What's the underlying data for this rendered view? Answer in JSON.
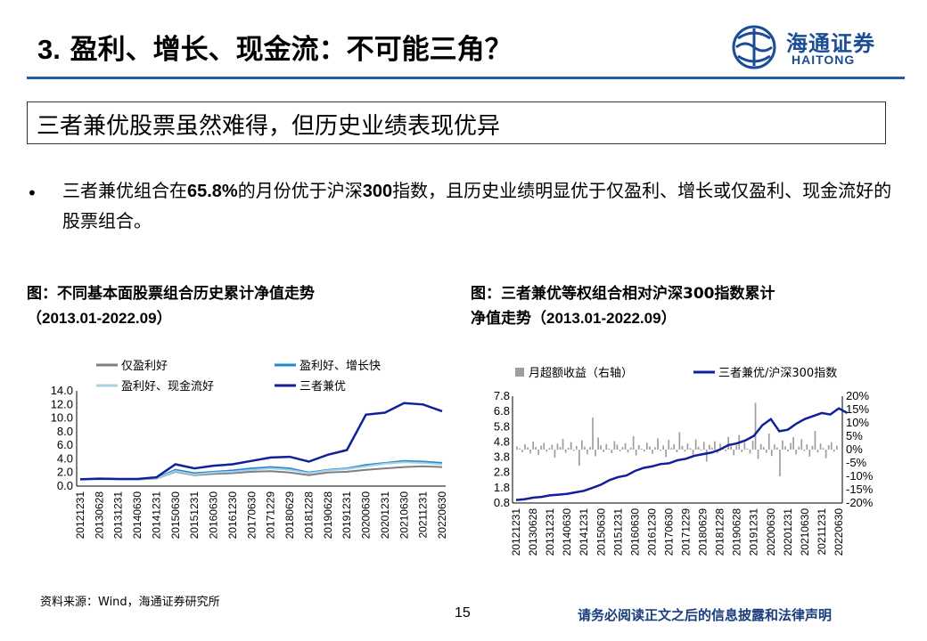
{
  "header": {
    "title_num": "3.",
    "title_text": " 盈利、增长、现金流：不可能三角？",
    "logo_cn": "海通证券",
    "logo_en": "HAITONG",
    "colors": {
      "accent": "#1f5fa8",
      "brand": "#1a4d96"
    }
  },
  "subtitle": "三者兼优股票虽然难得，但历史业绩表现优异",
  "bullet": {
    "marker": "•",
    "parts": [
      "三者兼优组合在",
      "65.8%",
      "的月份优于沪深",
      "300",
      "指数，且历史业绩明显优于仅盈利、增长或仅盈利、现金流好的股票组合。"
    ]
  },
  "chart1_caption": {
    "line1": "图：不同基本面股票组合历史累计净值走势",
    "line2_pre": "（",
    "line2_en": "2013.01-2022.09",
    "line2_post": "）"
  },
  "chart2_caption": {
    "line1": "图：三者兼优等权组合相对沪深300指数累计",
    "line2_pre": "净值走势（",
    "line2_en": "2013.01-2022.09",
    "line2_post": "）"
  },
  "footer": {
    "source": "资料来源：Wind，海通证券研究所",
    "page": "15",
    "disclaimer": "请务必阅读正文之后的信息披露和法律声明"
  },
  "chart_data": [
    {
      "type": "line",
      "title": "",
      "ylim": [
        0,
        14
      ],
      "yticks": [
        "0.0",
        "2.0",
        "4.0",
        "6.0",
        "8.0",
        "10.0",
        "12.0",
        "14.0"
      ],
      "x_labels": [
        "20121231",
        "20130628",
        "20131231",
        "20140630",
        "20141231",
        "20150630",
        "20151231",
        "20160630",
        "20161230",
        "20170630",
        "20171229",
        "20180629",
        "20181228",
        "20190628",
        "20191231",
        "20200630",
        "20201231",
        "20210630",
        "20211231",
        "20220630"
      ],
      "legend_position": "top",
      "series": [
        {
          "name": "仅盈利好",
          "color": "#7f7f7f",
          "values": [
            1.0,
            1.05,
            1.02,
            1.0,
            1.1,
            2.1,
            1.6,
            1.8,
            1.9,
            2.1,
            2.2,
            2.0,
            1.6,
            2.0,
            2.1,
            2.4,
            2.6,
            2.8,
            2.9,
            2.8
          ]
        },
        {
          "name": "盈利好、增长快",
          "color": "#1f8ad0",
          "values": [
            1.0,
            1.06,
            1.03,
            1.0,
            1.15,
            2.4,
            1.9,
            2.1,
            2.3,
            2.6,
            2.8,
            2.6,
            2.0,
            2.4,
            2.6,
            3.1,
            3.4,
            3.7,
            3.6,
            3.4
          ]
        },
        {
          "name": "盈利好、现金流好",
          "color": "#a8cfe8",
          "values": [
            1.0,
            1.05,
            1.03,
            1.0,
            1.12,
            2.2,
            1.7,
            2.0,
            2.1,
            2.4,
            2.6,
            2.4,
            1.9,
            2.3,
            2.5,
            2.9,
            3.3,
            3.5,
            3.4,
            3.2
          ]
        },
        {
          "name": "三者兼优",
          "color": "#10209a",
          "values": [
            1.0,
            1.1,
            1.05,
            1.05,
            1.3,
            3.2,
            2.6,
            3.0,
            3.2,
            3.7,
            4.2,
            4.3,
            3.6,
            4.6,
            5.3,
            10.5,
            10.8,
            12.2,
            12.0,
            11.0
          ]
        }
      ]
    },
    {
      "type": "bar",
      "title": "",
      "ylim_left": [
        0.8,
        7.8
      ],
      "yticks_left": [
        "0.8",
        "1.8",
        "2.8",
        "3.8",
        "4.8",
        "5.8",
        "6.8",
        "7.8"
      ],
      "ylim_right": [
        -20,
        20
      ],
      "yticks_right": [
        "-20%",
        "-15%",
        "-10%",
        "-5%",
        "0%",
        "5%",
        "10%",
        "15%",
        "20%"
      ],
      "x_labels": [
        "20121231",
        "20130628",
        "20131231",
        "20140630",
        "20141231",
        "20150630",
        "20151231",
        "20160630",
        "20161230",
        "20170630",
        "20171229",
        "20180629",
        "20181228",
        "20190628",
        "20191231",
        "20200630",
        "20201231",
        "20210630",
        "20211231",
        "20220630"
      ],
      "legend_position": "top",
      "series": [
        {
          "name": "月超额收益（右轴）",
          "color": "#9e9e9e",
          "axis": "right",
          "values": [
            1.2,
            0.5,
            -1.0,
            2.0,
            0.8,
            -1.5,
            3.0,
            1.0,
            -2.0,
            1.5,
            2.5,
            -0.8,
            0.6,
            1.8,
            -3.0,
            2.2,
            1.0,
            4.0,
            -1.2,
            0.7,
            2.8,
            -0.5,
            1.3,
            -6.0,
            3.5,
            1.1,
            -1.8,
            0.9,
            12.0,
            -2.5,
            4.5,
            1.6,
            -0.9,
            2.1,
            0.4,
            -1.4,
            3.2,
            1.9,
            -0.6,
            1.0,
            2.4,
            -1.1,
            0.8,
            5.0,
            -2.2,
            1.7,
            0.3,
            -0.7,
            2.6,
            1.2,
            -1.6,
            0.9,
            4.2,
            -0.4,
            1.5,
            -2.8,
            3.6,
            0.6,
            2.0,
            -1.0,
            6.5,
            1.4,
            -0.8,
            2.3,
            0.5,
            -1.9,
            3.8,
            1.1,
            -0.3,
            2.9,
            -4.5,
            1.8,
            0.7,
            3.1,
            -1.3,
            2.2,
            0.9,
            -0.6,
            4.8,
            1.3,
            -2.1,
            1.6,
            5.5,
            -0.9,
            2.7,
            0.4,
            -1.5,
            3.3,
            17.5,
            -3.5,
            2.1,
            1.0,
            -1.2,
            6.0,
            -2.4,
            1.9,
            0.8,
            -10.0,
            3.4,
            1.2,
            -0.7,
            2.5,
            4.6,
            -1.8,
            1.1,
            3.9,
            -0.5,
            2.0,
            -2.6,
            1.4,
            7.0,
            -1.1,
            2.3,
            0.6,
            -3.2,
            1.7,
            2.8,
            -0.8,
            1.5
          ]
        },
        {
          "name": "三者兼优/沪深300指数",
          "color": "#10209a",
          "axis": "left",
          "x": [
            0,
            0.5,
            1,
            1.5,
            2,
            2.5,
            3,
            3.5,
            4,
            4.5,
            5,
            5.5,
            6,
            6.5,
            7,
            7.5,
            8,
            8.5,
            9,
            9.5,
            10,
            10.5,
            11,
            11.5,
            12,
            12.5,
            13,
            13.5,
            14,
            14.5,
            15,
            15.5,
            16,
            16.5,
            17,
            17.5,
            18,
            18.5,
            19,
            19.5
          ],
          "values": [
            1.0,
            1.05,
            1.15,
            1.2,
            1.3,
            1.35,
            1.4,
            1.5,
            1.6,
            1.8,
            2.0,
            2.3,
            2.5,
            2.6,
            2.9,
            3.1,
            3.2,
            3.35,
            3.4,
            3.6,
            3.7,
            3.9,
            4.0,
            4.1,
            4.3,
            4.6,
            4.7,
            4.9,
            5.2,
            5.9,
            6.3,
            5.5,
            5.6,
            6.0,
            6.3,
            6.5,
            6.7,
            6.6,
            7.0,
            6.7
          ]
        }
      ]
    }
  ]
}
